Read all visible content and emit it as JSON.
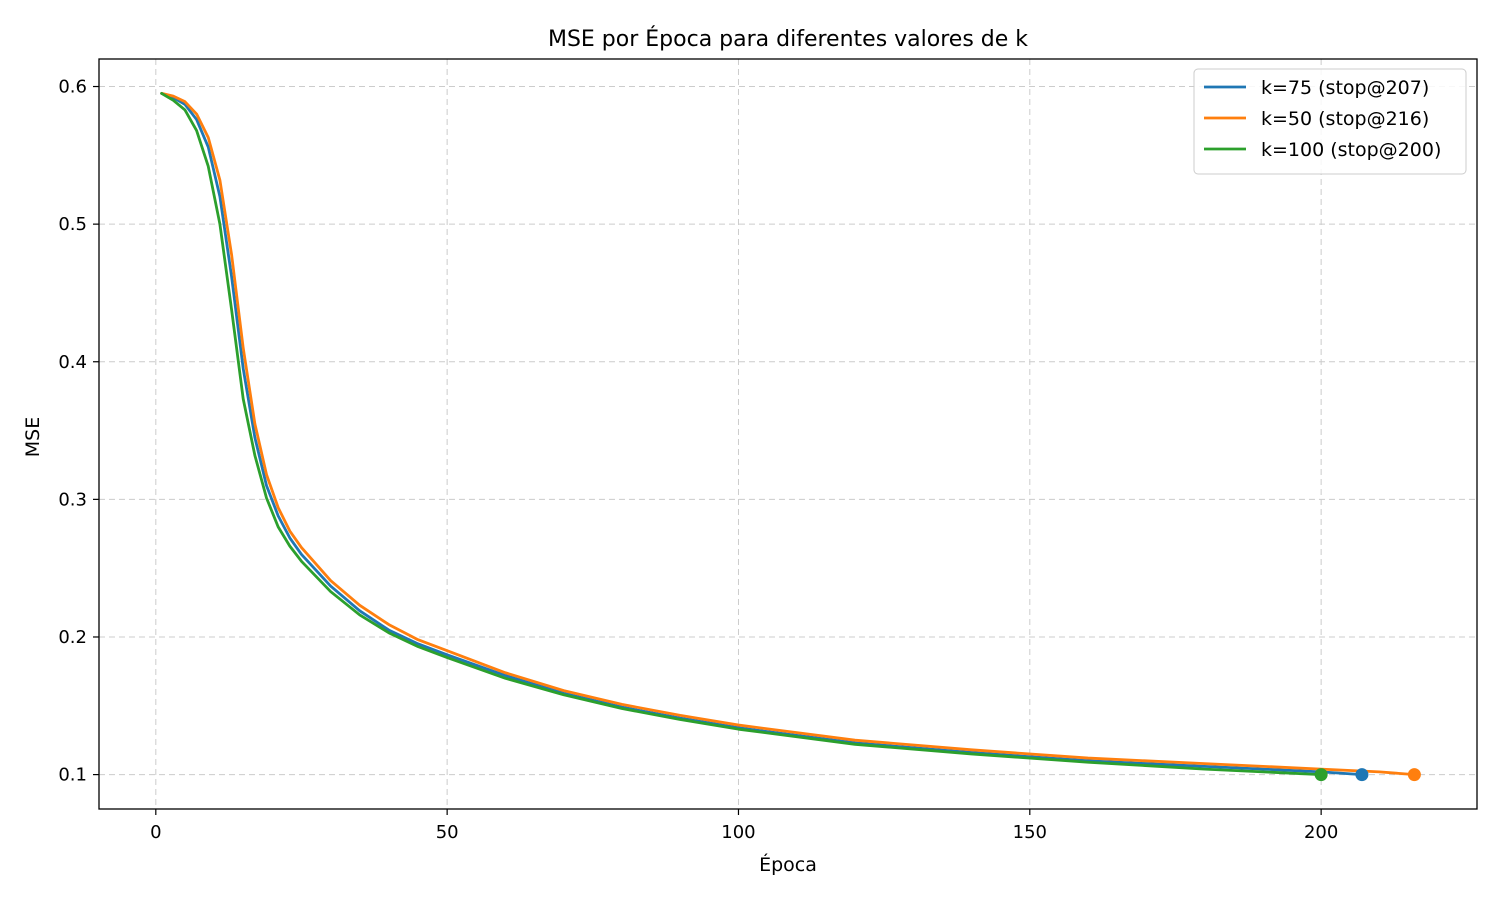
{
  "chart_data": {
    "type": "line",
    "title": "MSE por Época para diferentes valores de k",
    "xlabel": "Época",
    "ylabel": "MSE",
    "xlim": [
      -9.75,
      226.75
    ],
    "ylim": [
      0.075,
      0.62
    ],
    "xticks": [
      0,
      50,
      100,
      150,
      200
    ],
    "yticks": [
      0.1,
      0.2,
      0.3,
      0.4,
      0.5,
      0.6
    ],
    "ytick_labels": [
      "0.1",
      "0.2",
      "0.3",
      "0.4",
      "0.5",
      "0.6"
    ],
    "grid": true,
    "legend_position": "top-right",
    "series": [
      {
        "name": "k=75 (stop@207)",
        "color": "#1f77b4",
        "stop_epoch": 207,
        "stop_mse": 0.1,
        "x": [
          1,
          3,
          5,
          7,
          9,
          11,
          13,
          15,
          17,
          19,
          21,
          23,
          25,
          30,
          35,
          40,
          45,
          50,
          60,
          70,
          80,
          90,
          100,
          120,
          140,
          160,
          180,
          200,
          207
        ],
        "y": [
          0.595,
          0.592,
          0.587,
          0.576,
          0.556,
          0.52,
          0.462,
          0.395,
          0.345,
          0.31,
          0.288,
          0.272,
          0.26,
          0.237,
          0.219,
          0.205,
          0.195,
          0.187,
          0.172,
          0.159,
          0.149,
          0.141,
          0.134,
          0.123,
          0.116,
          0.11,
          0.106,
          0.102,
          0.1
        ]
      },
      {
        "name": "k=50 (stop@216)",
        "color": "#ff7f0e",
        "stop_epoch": 216,
        "stop_mse": 0.1,
        "x": [
          1,
          3,
          5,
          7,
          9,
          11,
          13,
          15,
          17,
          19,
          21,
          23,
          25,
          30,
          35,
          40,
          45,
          50,
          60,
          70,
          80,
          90,
          100,
          120,
          140,
          160,
          180,
          200,
          210,
          216
        ],
        "y": [
          0.595,
          0.593,
          0.589,
          0.58,
          0.563,
          0.532,
          0.478,
          0.41,
          0.355,
          0.318,
          0.294,
          0.277,
          0.265,
          0.241,
          0.223,
          0.209,
          0.198,
          0.19,
          0.174,
          0.161,
          0.151,
          0.143,
          0.136,
          0.125,
          0.118,
          0.112,
          0.108,
          0.104,
          0.102,
          0.1
        ]
      },
      {
        "name": "k=100 (stop@200)",
        "color": "#2ca02c",
        "stop_epoch": 200,
        "stop_mse": 0.1,
        "x": [
          1,
          3,
          5,
          7,
          9,
          11,
          13,
          15,
          17,
          19,
          21,
          23,
          25,
          30,
          35,
          40,
          45,
          50,
          60,
          70,
          80,
          90,
          100,
          120,
          140,
          160,
          180,
          200
        ],
        "y": [
          0.595,
          0.59,
          0.583,
          0.568,
          0.542,
          0.5,
          0.438,
          0.373,
          0.332,
          0.301,
          0.28,
          0.266,
          0.255,
          0.233,
          0.216,
          0.203,
          0.193,
          0.185,
          0.17,
          0.158,
          0.148,
          0.14,
          0.133,
          0.122,
          0.115,
          0.109,
          0.104,
          0.1
        ]
      }
    ]
  }
}
